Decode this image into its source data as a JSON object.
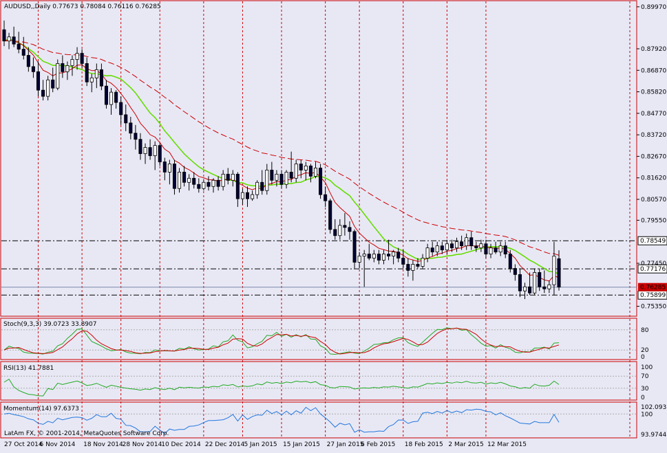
{
  "colors": {
    "background": "#e8e8f5",
    "border": "#cc0000",
    "candle_up_body": "#ffffff",
    "candle_down_body": "#000033",
    "ma_fast": "#cc0000",
    "ma_slow": "#66dd00",
    "ma_long": "#cc0000",
    "price_tag_red": "#cc0000",
    "stoch_main": "#22aa22",
    "stoch_signal": "#cc0000",
    "rsi_line": "#22aa22",
    "momentum_line": "#2277dd",
    "level_line": "#000000"
  },
  "main": {
    "header": "AUDUSD,,Daily  0.77673 0.78084 0.76116 0.76285",
    "price_ticks": [
      "0.89970",
      "0.87920",
      "0.86870",
      "0.85820",
      "0.84770",
      "0.83720",
      "0.82670",
      "0.81620",
      "0.80570",
      "0.79550",
      "0.77450",
      "0.75350"
    ],
    "levels": [
      {
        "label": "0.78549",
        "value": 0.78549
      },
      {
        "label": "0.77176",
        "value": 0.77176
      },
      {
        "label": "0.75899",
        "value": 0.75899
      }
    ],
    "current_price": {
      "label": "0.76285",
      "value": 0.76285
    }
  },
  "stoch": {
    "header": "Stoch(9,3,3) 39.0723 33.8907",
    "ticks": [
      "80",
      "20",
      "0"
    ]
  },
  "rsi": {
    "header": "RSI(13) 41.7881",
    "ticks": [
      "100",
      "70",
      "30",
      "0"
    ]
  },
  "momentum": {
    "header": "Momentum(14) 97.6373",
    "ticks": [
      "102.093",
      "100",
      "93.9744"
    ]
  },
  "footer": {
    "copyright": "LatAm FX, © 2001-2014, MetaQuotes Software Corp."
  },
  "x_axis": {
    "labels": [
      "27 Oct 2014",
      "6 Nov 2014",
      "18 Nov 2014",
      "28 Nov 2014",
      "10 Dec 2014",
      "22 Dec 2014",
      "5 Jan 2015",
      "15 Jan 2015",
      "27 Jan 2015",
      "6 Feb 2015",
      "18 Feb 2015",
      "2 Mar 2015",
      "12 Mar 2015"
    ]
  },
  "chart_data": {
    "type": "candlestick",
    "symbol": "AUDUSD",
    "timeframe": "Daily",
    "last_bar": {
      "open": 0.77673,
      "high": 0.78084,
      "low": 0.76116,
      "close": 0.76285
    },
    "ohlc": [
      {
        "o": 0.8885,
        "h": 0.893,
        "l": 0.8805,
        "c": 0.883
      },
      {
        "o": 0.883,
        "h": 0.887,
        "l": 0.879,
        "c": 0.885
      },
      {
        "o": 0.885,
        "h": 0.89,
        "l": 0.88,
        "c": 0.8815
      },
      {
        "o": 0.8815,
        "h": 0.8875,
        "l": 0.877,
        "c": 0.879
      },
      {
        "o": 0.879,
        "h": 0.885,
        "l": 0.874,
        "c": 0.876
      },
      {
        "o": 0.876,
        "h": 0.88,
        "l": 0.868,
        "c": 0.8705
      },
      {
        "o": 0.8705,
        "h": 0.875,
        "l": 0.865,
        "c": 0.868
      },
      {
        "o": 0.868,
        "h": 0.873,
        "l": 0.856,
        "c": 0.859
      },
      {
        "o": 0.859,
        "h": 0.864,
        "l": 0.854,
        "c": 0.856
      },
      {
        "o": 0.856,
        "h": 0.866,
        "l": 0.854,
        "c": 0.864
      },
      {
        "o": 0.864,
        "h": 0.87,
        "l": 0.858,
        "c": 0.86
      },
      {
        "o": 0.86,
        "h": 0.874,
        "l": 0.859,
        "c": 0.872
      },
      {
        "o": 0.872,
        "h": 0.876,
        "l": 0.865,
        "c": 0.868
      },
      {
        "o": 0.868,
        "h": 0.873,
        "l": 0.864,
        "c": 0.871
      },
      {
        "o": 0.871,
        "h": 0.876,
        "l": 0.866,
        "c": 0.874
      },
      {
        "o": 0.874,
        "h": 0.88,
        "l": 0.869,
        "c": 0.877
      },
      {
        "o": 0.877,
        "h": 0.879,
        "l": 0.87,
        "c": 0.872
      },
      {
        "o": 0.872,
        "h": 0.875,
        "l": 0.861,
        "c": 0.863
      },
      {
        "o": 0.863,
        "h": 0.867,
        "l": 0.858,
        "c": 0.865
      },
      {
        "o": 0.865,
        "h": 0.872,
        "l": 0.86,
        "c": 0.869
      },
      {
        "o": 0.869,
        "h": 0.872,
        "l": 0.859,
        "c": 0.861
      },
      {
        "o": 0.861,
        "h": 0.864,
        "l": 0.85,
        "c": 0.852
      },
      {
        "o": 0.852,
        "h": 0.86,
        "l": 0.847,
        "c": 0.858
      },
      {
        "o": 0.858,
        "h": 0.859,
        "l": 0.85,
        "c": 0.853
      },
      {
        "o": 0.853,
        "h": 0.856,
        "l": 0.842,
        "c": 0.847
      },
      {
        "o": 0.847,
        "h": 0.852,
        "l": 0.839,
        "c": 0.843
      },
      {
        "o": 0.843,
        "h": 0.846,
        "l": 0.835,
        "c": 0.838
      },
      {
        "o": 0.838,
        "h": 0.842,
        "l": 0.83,
        "c": 0.835
      },
      {
        "o": 0.835,
        "h": 0.838,
        "l": 0.825,
        "c": 0.828
      },
      {
        "o": 0.828,
        "h": 0.833,
        "l": 0.823,
        "c": 0.831
      },
      {
        "o": 0.831,
        "h": 0.835,
        "l": 0.825,
        "c": 0.827
      },
      {
        "o": 0.827,
        "h": 0.834,
        "l": 0.82,
        "c": 0.832
      },
      {
        "o": 0.832,
        "h": 0.833,
        "l": 0.822,
        "c": 0.824
      },
      {
        "o": 0.824,
        "h": 0.826,
        "l": 0.815,
        "c": 0.819
      },
      {
        "o": 0.819,
        "h": 0.825,
        "l": 0.813,
        "c": 0.823
      },
      {
        "o": 0.823,
        "h": 0.825,
        "l": 0.808,
        "c": 0.811
      },
      {
        "o": 0.811,
        "h": 0.821,
        "l": 0.809,
        "c": 0.819
      },
      {
        "o": 0.819,
        "h": 0.822,
        "l": 0.812,
        "c": 0.814
      },
      {
        "o": 0.814,
        "h": 0.818,
        "l": 0.81,
        "c": 0.816
      },
      {
        "o": 0.816,
        "h": 0.819,
        "l": 0.811,
        "c": 0.813
      },
      {
        "o": 0.813,
        "h": 0.816,
        "l": 0.809,
        "c": 0.811
      },
      {
        "o": 0.811,
        "h": 0.815,
        "l": 0.81,
        "c": 0.814
      },
      {
        "o": 0.814,
        "h": 0.817,
        "l": 0.81,
        "c": 0.812
      },
      {
        "o": 0.812,
        "h": 0.816,
        "l": 0.809,
        "c": 0.815
      },
      {
        "o": 0.815,
        "h": 0.817,
        "l": 0.81,
        "c": 0.812
      },
      {
        "o": 0.812,
        "h": 0.82,
        "l": 0.81,
        "c": 0.818
      },
      {
        "o": 0.818,
        "h": 0.821,
        "l": 0.813,
        "c": 0.815
      },
      {
        "o": 0.815,
        "h": 0.82,
        "l": 0.812,
        "c": 0.818
      },
      {
        "o": 0.818,
        "h": 0.819,
        "l": 0.802,
        "c": 0.806
      },
      {
        "o": 0.806,
        "h": 0.811,
        "l": 0.803,
        "c": 0.809
      },
      {
        "o": 0.809,
        "h": 0.812,
        "l": 0.802,
        "c": 0.806
      },
      {
        "o": 0.806,
        "h": 0.81,
        "l": 0.805,
        "c": 0.808
      },
      {
        "o": 0.808,
        "h": 0.815,
        "l": 0.806,
        "c": 0.814
      },
      {
        "o": 0.814,
        "h": 0.82,
        "l": 0.808,
        "c": 0.81
      },
      {
        "o": 0.81,
        "h": 0.823,
        "l": 0.808,
        "c": 0.82
      },
      {
        "o": 0.82,
        "h": 0.824,
        "l": 0.813,
        "c": 0.815
      },
      {
        "o": 0.815,
        "h": 0.82,
        "l": 0.812,
        "c": 0.818
      },
      {
        "o": 0.818,
        "h": 0.82,
        "l": 0.811,
        "c": 0.813
      },
      {
        "o": 0.813,
        "h": 0.82,
        "l": 0.811,
        "c": 0.819
      },
      {
        "o": 0.819,
        "h": 0.829,
        "l": 0.814,
        "c": 0.816
      },
      {
        "o": 0.816,
        "h": 0.825,
        "l": 0.814,
        "c": 0.823
      },
      {
        "o": 0.823,
        "h": 0.825,
        "l": 0.816,
        "c": 0.82
      },
      {
        "o": 0.82,
        "h": 0.824,
        "l": 0.815,
        "c": 0.822
      },
      {
        "o": 0.822,
        "h": 0.823,
        "l": 0.814,
        "c": 0.817
      },
      {
        "o": 0.817,
        "h": 0.824,
        "l": 0.816,
        "c": 0.821
      },
      {
        "o": 0.821,
        "h": 0.823,
        "l": 0.806,
        "c": 0.808
      },
      {
        "o": 0.808,
        "h": 0.812,
        "l": 0.802,
        "c": 0.805
      },
      {
        "o": 0.805,
        "h": 0.806,
        "l": 0.789,
        "c": 0.791
      },
      {
        "o": 0.791,
        "h": 0.796,
        "l": 0.786,
        "c": 0.788
      },
      {
        "o": 0.788,
        "h": 0.796,
        "l": 0.786,
        "c": 0.793
      },
      {
        "o": 0.793,
        "h": 0.799,
        "l": 0.788,
        "c": 0.792
      },
      {
        "o": 0.792,
        "h": 0.795,
        "l": 0.786,
        "c": 0.79
      },
      {
        "o": 0.79,
        "h": 0.791,
        "l": 0.772,
        "c": 0.775
      },
      {
        "o": 0.775,
        "h": 0.78,
        "l": 0.772,
        "c": 0.778
      },
      {
        "o": 0.778,
        "h": 0.781,
        "l": 0.763,
        "c": 0.779
      },
      {
        "o": 0.779,
        "h": 0.784,
        "l": 0.776,
        "c": 0.777
      },
      {
        "o": 0.777,
        "h": 0.781,
        "l": 0.775,
        "c": 0.779
      },
      {
        "o": 0.779,
        "h": 0.781,
        "l": 0.774,
        "c": 0.776
      },
      {
        "o": 0.776,
        "h": 0.781,
        "l": 0.774,
        "c": 0.779
      },
      {
        "o": 0.779,
        "h": 0.786,
        "l": 0.776,
        "c": 0.778
      },
      {
        "o": 0.778,
        "h": 0.781,
        "l": 0.774,
        "c": 0.78
      },
      {
        "o": 0.78,
        "h": 0.782,
        "l": 0.775,
        "c": 0.777
      },
      {
        "o": 0.777,
        "h": 0.781,
        "l": 0.772,
        "c": 0.774
      },
      {
        "o": 0.774,
        "h": 0.777,
        "l": 0.768,
        "c": 0.771
      },
      {
        "o": 0.771,
        "h": 0.776,
        "l": 0.766,
        "c": 0.774
      },
      {
        "o": 0.774,
        "h": 0.777,
        "l": 0.772,
        "c": 0.773
      },
      {
        "o": 0.773,
        "h": 0.779,
        "l": 0.772,
        "c": 0.777
      },
      {
        "o": 0.777,
        "h": 0.784,
        "l": 0.775,
        "c": 0.782
      },
      {
        "o": 0.782,
        "h": 0.785,
        "l": 0.778,
        "c": 0.78
      },
      {
        "o": 0.78,
        "h": 0.785,
        "l": 0.778,
        "c": 0.783
      },
      {
        "o": 0.783,
        "h": 0.785,
        "l": 0.779,
        "c": 0.781
      },
      {
        "o": 0.781,
        "h": 0.786,
        "l": 0.779,
        "c": 0.784
      },
      {
        "o": 0.784,
        "h": 0.786,
        "l": 0.78,
        "c": 0.782
      },
      {
        "o": 0.782,
        "h": 0.787,
        "l": 0.78,
        "c": 0.785
      },
      {
        "o": 0.785,
        "h": 0.788,
        "l": 0.781,
        "c": 0.783
      },
      {
        "o": 0.783,
        "h": 0.789,
        "l": 0.781,
        "c": 0.787
      },
      {
        "o": 0.787,
        "h": 0.79,
        "l": 0.781,
        "c": 0.783
      },
      {
        "o": 0.783,
        "h": 0.785,
        "l": 0.78,
        "c": 0.782
      },
      {
        "o": 0.782,
        "h": 0.786,
        "l": 0.78,
        "c": 0.784
      },
      {
        "o": 0.784,
        "h": 0.786,
        "l": 0.777,
        "c": 0.779
      },
      {
        "o": 0.779,
        "h": 0.784,
        "l": 0.777,
        "c": 0.782
      },
      {
        "o": 0.782,
        "h": 0.785,
        "l": 0.779,
        "c": 0.78
      },
      {
        "o": 0.78,
        "h": 0.785,
        "l": 0.778,
        "c": 0.783
      },
      {
        "o": 0.783,
        "h": 0.785,
        "l": 0.777,
        "c": 0.779
      },
      {
        "o": 0.779,
        "h": 0.781,
        "l": 0.77,
        "c": 0.772
      },
      {
        "o": 0.772,
        "h": 0.774,
        "l": 0.766,
        "c": 0.769
      },
      {
        "o": 0.769,
        "h": 0.772,
        "l": 0.758,
        "c": 0.761
      },
      {
        "o": 0.761,
        "h": 0.765,
        "l": 0.757,
        "c": 0.763
      },
      {
        "o": 0.763,
        "h": 0.77,
        "l": 0.759,
        "c": 0.76
      },
      {
        "o": 0.76,
        "h": 0.772,
        "l": 0.759,
        "c": 0.77
      },
      {
        "o": 0.77,
        "h": 0.772,
        "l": 0.761,
        "c": 0.763
      },
      {
        "o": 0.763,
        "h": 0.771,
        "l": 0.76,
        "c": 0.762
      },
      {
        "o": 0.762,
        "h": 0.766,
        "l": 0.76,
        "c": 0.764
      },
      {
        "o": 0.764,
        "h": 0.785,
        "l": 0.759,
        "c": 0.778
      },
      {
        "o": 0.77673,
        "h": 0.78084,
        "l": 0.76116,
        "c": 0.76285
      }
    ],
    "ylim": [
      0.75,
      0.901
    ],
    "grid": false,
    "stoch_range": [
      0,
      100
    ],
    "rsi_range": [
      0,
      100
    ],
    "momentum_range": [
      93.9744,
      102.093
    ]
  }
}
